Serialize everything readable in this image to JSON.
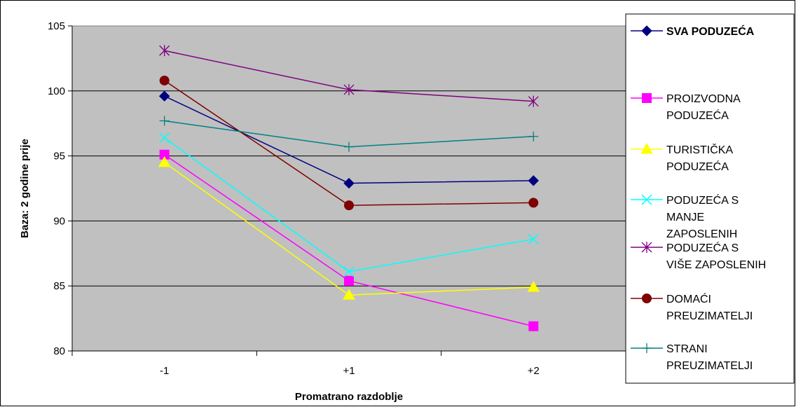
{
  "chart_data": {
    "type": "line",
    "categories": [
      "-1",
      "+1",
      "+2"
    ],
    "xlabel": "Promatrano razdoblje",
    "ylabel": "Baza: 2 godine prije",
    "ylim": [
      80,
      105
    ],
    "yticks": [
      "80",
      "85",
      "90",
      "95",
      "100",
      "105"
    ],
    "grid": "horizontal",
    "plot_background": "#c0c0c0",
    "legend_position": "right",
    "series": [
      {
        "name": "SVA PODUZEĆA",
        "legend_lines": [
          "SVA PODUZEĆA"
        ],
        "bold": true,
        "color": "#000080",
        "marker": "diamond",
        "values": [
          99.6,
          92.9,
          93.1
        ]
      },
      {
        "name": "PROIZVODNA PODUZEĆA",
        "legend_lines": [
          "PROIZVODNA",
          "PODUZEĆA"
        ],
        "color": "#ff00ff",
        "marker": "square",
        "values": [
          95.1,
          85.4,
          81.9
        ]
      },
      {
        "name": "TURISTIČKA PODUZEĆA",
        "legend_lines": [
          "TURISTIČKA",
          "PODUZEĆA"
        ],
        "color": "#ffff00",
        "marker": "triangle",
        "values": [
          94.5,
          84.3,
          84.9
        ]
      },
      {
        "name": "PODUZEĆA S MANJE ZAPOSLENIH",
        "legend_lines": [
          "PODUZEĆA S",
          "MANJE",
          "ZAPOSLENIH"
        ],
        "color": "#00ffff",
        "marker": "x",
        "values": [
          96.4,
          86.1,
          88.6
        ]
      },
      {
        "name": "PODUZEĆA S VIŠE ZAPOSLENIH",
        "legend_lines": [
          "PODUZEĆA S",
          "VIŠE ZAPOSLENIH"
        ],
        "color": "#800080",
        "marker": "star",
        "values": [
          103.1,
          100.1,
          99.2
        ]
      },
      {
        "name": "DOMAĆI PREUZIMATELJI",
        "legend_lines": [
          "DOMAĆI",
          "PREUZIMATELJI"
        ],
        "color": "#800000",
        "marker": "circle",
        "values": [
          100.8,
          91.2,
          91.4
        ]
      },
      {
        "name": "STRANI PREUZIMATELJI",
        "legend_lines": [
          "STRANI",
          "PREUZIMATELJI"
        ],
        "color": "#008080",
        "marker": "plus",
        "values": [
          97.7,
          95.7,
          96.5
        ]
      }
    ]
  }
}
